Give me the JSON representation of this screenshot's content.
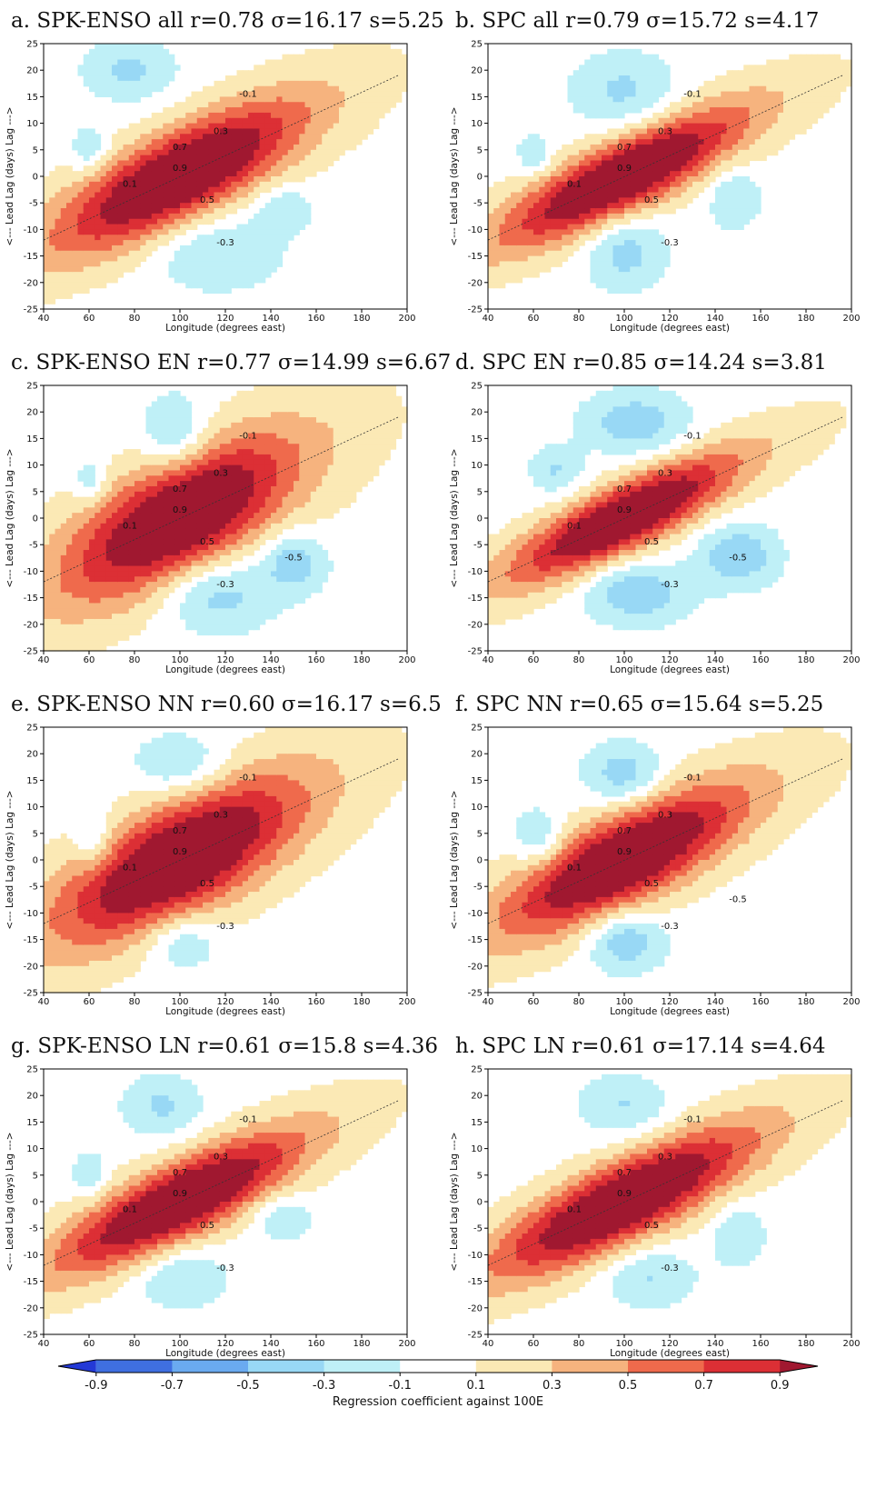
{
  "chart_data": {
    "type": "contour",
    "panels": [
      {
        "id": "a",
        "title": "a. SPK-ENSO all r=0.78 σ=16.17 s=5.25",
        "center_x": 100,
        "center_y": 0,
        "sx": 16.17,
        "sy": 5.25,
        "slope_lon": [
          40,
          196
        ],
        "slope_lag": [
          -12,
          19
        ],
        "lobes": [
          {
            "x": 78,
            "y": 20,
            "sx": 14,
            "sy": 4,
            "a": -0.35
          },
          {
            "x": 60,
            "y": 5,
            "sx": 6,
            "sy": 3,
            "a": -0.32
          },
          {
            "x": 115,
            "y": -14,
            "sx": 20,
            "sy": 5,
            "a": -0.33
          },
          {
            "x": 145,
            "y": -6,
            "sx": 9,
            "sy": 3,
            "a": -0.32
          }
        ],
        "labels": [
          "0.9",
          "0.7",
          "0.5",
          "0.3",
          "0.1",
          "-0.1",
          "-0.3"
        ]
      },
      {
        "id": "b",
        "title": "b. SPC all r=0.79 σ=15.72 s=4.17",
        "center_x": 100,
        "center_y": 0,
        "sx": 15.72,
        "sy": 4.17,
        "slope_lon": [
          40,
          196
        ],
        "slope_lag": [
          -12,
          19
        ],
        "lobes": [
          {
            "x": 100,
            "y": 16,
            "sx": 16,
            "sy": 5,
            "a": -0.35
          },
          {
            "x": 60,
            "y": 4,
            "sx": 5,
            "sy": 2.5,
            "a": -0.32
          },
          {
            "x": 100,
            "y": -14,
            "sx": 12,
            "sy": 5,
            "a": -0.4
          },
          {
            "x": 148,
            "y": -4,
            "sx": 8,
            "sy": 4,
            "a": -0.32
          }
        ],
        "labels": [
          "0.9",
          "0.7",
          "0.5",
          "0.3",
          "0.1",
          "-0.1",
          "-0.3"
        ]
      },
      {
        "id": "c",
        "title": "c. SPK-ENSO EN r=0.77 σ=14.99 s=6.67",
        "center_x": 100,
        "center_y": 0,
        "sx": 14.99,
        "sy": 6.67,
        "slope_lon": [
          40,
          196
        ],
        "slope_lag": [
          -12,
          19
        ],
        "lobes": [
          {
            "x": 98,
            "y": 16,
            "sx": 10,
            "sy": 5,
            "a": -0.4
          },
          {
            "x": 60,
            "y": 7,
            "sx": 5,
            "sy": 3,
            "a": -0.32
          },
          {
            "x": 115,
            "y": -14,
            "sx": 18,
            "sy": 5,
            "a": -0.45
          },
          {
            "x": 150,
            "y": -8,
            "sx": 10,
            "sy": 4,
            "a": -0.45
          }
        ],
        "labels": [
          "0.9",
          "0.7",
          "0.5",
          "0.3",
          "0.1",
          "-0.1",
          "-0.3",
          "-0.5"
        ]
      },
      {
        "id": "d",
        "title": "d. SPC EN r=0.85 σ=14.24 s=3.81",
        "center_x": 100,
        "center_y": 0,
        "sx": 14.24,
        "sy": 3.81,
        "slope_lon": [
          40,
          196
        ],
        "slope_lag": [
          -12,
          19
        ],
        "lobes": [
          {
            "x": 105,
            "y": 18,
            "sx": 16,
            "sy": 4,
            "a": -0.45
          },
          {
            "x": 70,
            "y": 9,
            "sx": 8,
            "sy": 3,
            "a": -0.32
          },
          {
            "x": 105,
            "y": -14,
            "sx": 16,
            "sy": 4,
            "a": -0.48
          },
          {
            "x": 150,
            "y": -7,
            "sx": 12,
            "sy": 4,
            "a": -0.5
          }
        ],
        "labels": [
          "0.9",
          "0.7",
          "0.5",
          "0.3",
          "0.1",
          "-0.1",
          "-0.3",
          "-0.5"
        ]
      },
      {
        "id": "e",
        "title": "e. SPK-ENSO NN r=0.60 σ=16.17 s=6.5",
        "center_x": 100,
        "center_y": 0,
        "sx": 16.17,
        "sy": 6.5,
        "slope_lon": [
          40,
          196
        ],
        "slope_lag": [
          -12,
          19
        ],
        "lobes": [
          {
            "x": 100,
            "y": 18,
            "sx": 14,
            "sy": 4,
            "a": -0.35
          },
          {
            "x": 62,
            "y": 4,
            "sx": 6,
            "sy": 4,
            "a": -0.33
          },
          {
            "x": 100,
            "y": -15,
            "sx": 12,
            "sy": 4,
            "a": -0.36
          }
        ],
        "labels": [
          "0.9",
          "0.7",
          "0.5",
          "0.3",
          "0.1",
          "-0.1",
          "-0.3"
        ]
      },
      {
        "id": "f",
        "title": "f. SPC NN r=0.65 σ=15.64 s=5.25",
        "center_x": 100,
        "center_y": 0,
        "sx": 15.64,
        "sy": 5.25,
        "slope_lon": [
          40,
          196
        ],
        "slope_lag": [
          -12,
          19
        ],
        "lobes": [
          {
            "x": 100,
            "y": 16,
            "sx": 12,
            "sy": 4,
            "a": -0.45
          },
          {
            "x": 62,
            "y": 4,
            "sx": 8,
            "sy": 4,
            "a": -0.35
          },
          {
            "x": 100,
            "y": -15,
            "sx": 12,
            "sy": 4,
            "a": -0.5
          }
        ],
        "labels": [
          "0.9",
          "0.7",
          "0.5",
          "0.3",
          "0.1",
          "-0.1",
          "-0.3",
          "-0.5"
        ]
      },
      {
        "id": "g",
        "title": "g. SPK-ENSO LN r=0.61 σ=15.8 s=4.36",
        "center_x": 100,
        "center_y": 0,
        "sx": 15.8,
        "sy": 4.36,
        "slope_lon": [
          40,
          196
        ],
        "slope_lag": [
          -12,
          19
        ],
        "lobes": [
          {
            "x": 92,
            "y": 18,
            "sx": 12,
            "sy": 4,
            "a": -0.34
          },
          {
            "x": 60,
            "y": 5,
            "sx": 5,
            "sy": 3,
            "a": -0.32
          },
          {
            "x": 100,
            "y": -14,
            "sx": 14,
            "sy": 4,
            "a": -0.33
          },
          {
            "x": 145,
            "y": -3,
            "sx": 9,
            "sy": 3,
            "a": -0.32
          }
        ],
        "labels": [
          "0.9",
          "0.7",
          "0.5",
          "0.3",
          "0.1",
          "-0.1",
          "-0.3"
        ]
      },
      {
        "id": "h",
        "title": "h. SPC LN r=0.61 σ=17.14 s=4.64",
        "center_x": 100,
        "center_y": 0,
        "sx": 17.14,
        "sy": 4.64,
        "slope_lon": [
          40,
          196
        ],
        "slope_lag": [
          -12,
          19
        ],
        "lobes": [
          {
            "x": 100,
            "y": 18,
            "sx": 14,
            "sy": 4,
            "a": -0.32
          },
          {
            "x": 110,
            "y": -14,
            "sx": 14,
            "sy": 4,
            "a": -0.33
          },
          {
            "x": 150,
            "y": -6,
            "sx": 8,
            "sy": 4,
            "a": -0.32
          }
        ],
        "labels": [
          "0.9",
          "0.7",
          "0.5",
          "0.3",
          "0.1",
          "-0.1",
          "-0.3"
        ]
      }
    ],
    "xlabel": "Longitude (degrees east)",
    "ylabel": "<--- Lead     Lag (days)     Lag --->",
    "xlim": [
      40,
      200
    ],
    "ylim": [
      -25,
      25
    ],
    "xticks": [
      "40",
      "60",
      "80",
      "100",
      "120",
      "140",
      "160",
      "180",
      "200"
    ],
    "yticks": [
      "25",
      "20",
      "15",
      "10",
      "5",
      "0",
      "-5",
      "-10",
      "-15",
      "-20",
      "-25"
    ],
    "levels": [
      -0.9,
      -0.7,
      -0.5,
      -0.3,
      -0.1,
      0.1,
      0.3,
      0.5,
      0.7,
      0.9
    ],
    "colorbar": {
      "ticks": [
        "-0.9",
        "-0.7",
        "-0.5",
        "-0.3",
        "-0.1",
        "0.1",
        "0.3",
        "0.5",
        "0.7",
        "0.9"
      ],
      "label": "Regression coefficient against 100E",
      "colors": [
        "#2339d6",
        "#3f6fe0",
        "#6aaaf0",
        "#98d8f5",
        "#bff0f7",
        "#ffffff",
        "#fbe9b5",
        "#f6b37e",
        "#ef6a4c",
        "#dc2f35",
        "#a01830"
      ]
    }
  }
}
